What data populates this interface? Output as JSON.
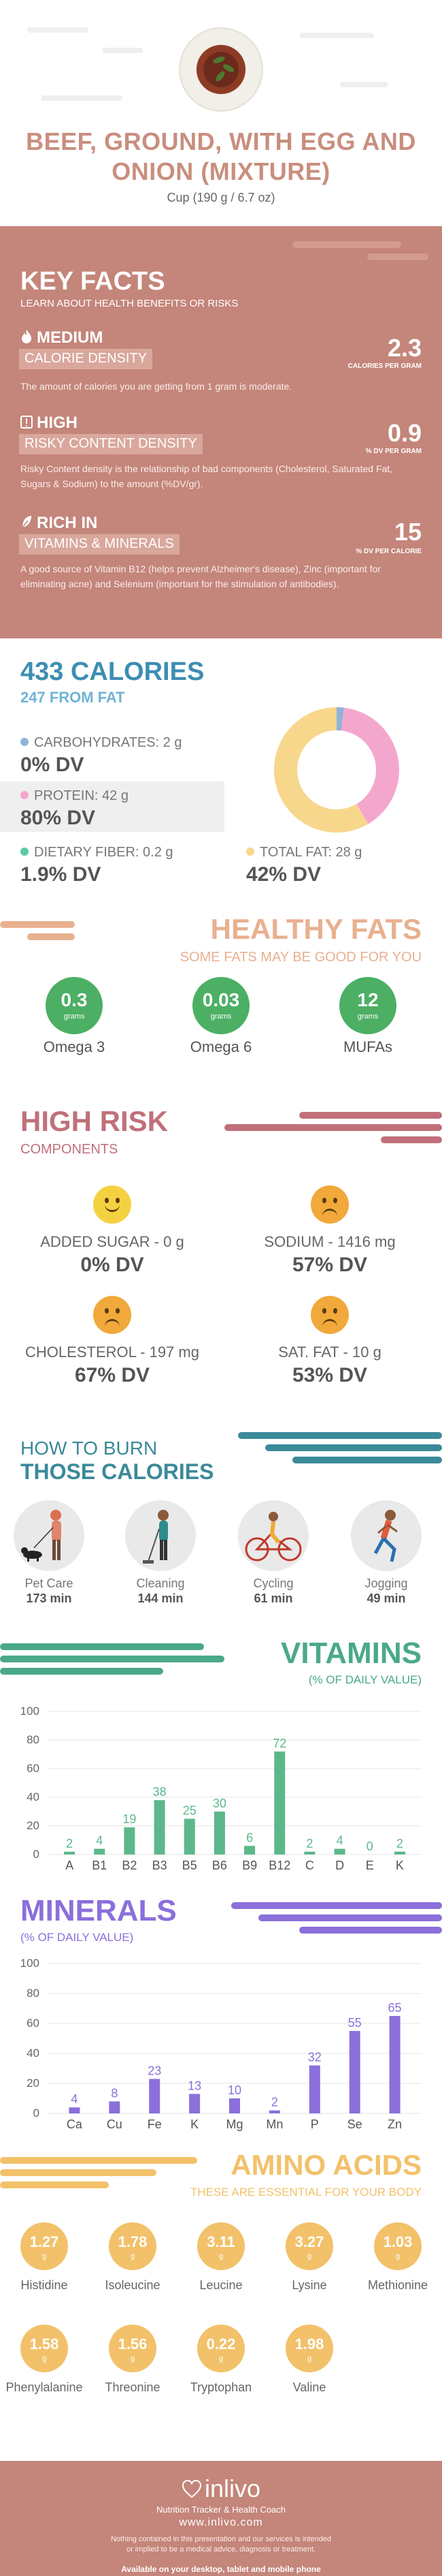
{
  "header": {
    "title": "BEEF, GROUND, WITH EGG AND ONION (MIXTURE)",
    "serving": "Cup (190 g / 6.7 oz)"
  },
  "key_facts": {
    "title": "KEY FACTS",
    "subtitle": "LEARN ABOUT HEALTH BENEFITS OR RISKS",
    "items": [
      {
        "level": "MEDIUM",
        "label": "CALORIE DENSITY",
        "value": "2.3",
        "unit": "CALORIES PER GRAM",
        "icon": "flame-icon",
        "description": "The amount of calories you are getting from 1 gram is moderate."
      },
      {
        "level": "HIGH",
        "label": "RISKY CONTENT DENSITY",
        "value": "0.9",
        "unit": "% DV PER GRAM",
        "icon": "warning-icon",
        "description": "Risky Content density is the relationship of bad components (Cholesterol, Saturated Fat, Sugars & Sodium) to the amount (%DV/gr)."
      },
      {
        "level": "RICH  IN",
        "label": "VITAMINS & MINERALS",
        "value": "15",
        "unit": "% DV PER CALORIE",
        "icon": "leaf-icon",
        "description": "A good source of Vitamin B12 (helps prevent Alzheimer's disease), Zinc (important for eliminating acne) and Selenium (important for the stimulation of antibodies)."
      }
    ]
  },
  "calories": {
    "title": "433 CALORIES",
    "from_fat": "247 FROM FAT",
    "carbs": {
      "label": "CARBOHYDRATES: 2 g",
      "dv": "0% DV",
      "color": "#8fb4d9"
    },
    "protein": {
      "label": "PROTEIN: 42 g",
      "dv": "80% DV",
      "color": "#f4a7cd"
    },
    "fiber": {
      "label": "DIETARY FIBER: 0.2 g",
      "dv": "1.9% DV",
      "color": "#5cc9a7"
    },
    "fat": {
      "label": "TOTAL FAT: 28 g",
      "dv": "42% DV",
      "color": "#f7d78c"
    },
    "donut": {
      "protein_kcal": 168,
      "fat_kcal": 247,
      "carb_kcal": 8
    }
  },
  "healthy_fats": {
    "title": "HEALTHY FATS",
    "subtitle": "SOME FATS MAY BE GOOD FOR YOU",
    "items": [
      {
        "value": "0.3",
        "unit": "grams",
        "name": "Omega 3"
      },
      {
        "value": "0.03",
        "unit": "grams",
        "name": "Omega 6"
      },
      {
        "value": "12",
        "unit": "grams",
        "name": "MUFAs"
      }
    ]
  },
  "high_risk": {
    "title": "HIGH RISK",
    "subtitle": "COMPONENTS",
    "items": [
      {
        "label": "ADDED SUGAR - 0 g",
        "dv": "0% DV",
        "mood": "happy"
      },
      {
        "label": "SODIUM - 1416 mg",
        "dv": "57% DV",
        "mood": "sad"
      },
      {
        "label": "CHOLESTEROL - 197 mg",
        "dv": "67% DV",
        "mood": "sad"
      },
      {
        "label": "SAT. FAT - 10 g",
        "dv": "53% DV",
        "mood": "sad"
      }
    ]
  },
  "burn": {
    "title_line1": "HOW TO BURN",
    "title_line2": "THOSE CALORIES",
    "activities": [
      {
        "name": "Pet Care",
        "minutes": "173 min",
        "icon": "dog-walking-icon"
      },
      {
        "name": "Cleaning",
        "minutes": "144 min",
        "icon": "vacuum-cleaning-icon"
      },
      {
        "name": "Cycling",
        "minutes": "61 min",
        "icon": "cycling-icon"
      },
      {
        "name": "Jogging",
        "minutes": "49 min",
        "icon": "jogging-icon"
      }
    ]
  },
  "vitamins": {
    "title": "VITAMINS",
    "subtitle": "(% OF DAILY VALUE)",
    "chart_data": {
      "type": "bar",
      "categories": [
        "A",
        "B1",
        "B2",
        "B3",
        "B5",
        "B6",
        "B9",
        "B12",
        "C",
        "D",
        "E",
        "K"
      ],
      "values": [
        2,
        4,
        19,
        38,
        25,
        30,
        6,
        72,
        2,
        4,
        0,
        2
      ],
      "ylim": [
        0,
        100
      ],
      "yticks": [
        0,
        20,
        40,
        60,
        80,
        100
      ],
      "color": "#5cb88a"
    }
  },
  "minerals": {
    "title": "MINERALS",
    "subtitle": "(% OF DAILY VALUE)",
    "chart_data": {
      "type": "bar",
      "categories": [
        "Ca",
        "Cu",
        "Fe",
        "K",
        "Mg",
        "Mn",
        "P",
        "Se",
        "Zn"
      ],
      "values": [
        4,
        8,
        23,
        13,
        10,
        2,
        32,
        55,
        65
      ],
      "ylim": [
        0,
        100
      ],
      "yticks": [
        0,
        20,
        40,
        60,
        80,
        100
      ],
      "color": "#8b6fdb"
    }
  },
  "amino_acids": {
    "title": "AMINO ACIDS",
    "subtitle": "THESE ARE ESSENTIAL FOR YOUR BODY",
    "unit": "g",
    "items": [
      {
        "value": "1.27",
        "name": "Histidine"
      },
      {
        "value": "1.78",
        "name": "Isoleucine"
      },
      {
        "value": "3.11",
        "name": "Leucine"
      },
      {
        "value": "3.27",
        "name": "Lysine"
      },
      {
        "value": "1.03",
        "name": "Methionine"
      },
      {
        "value": "1.58",
        "name": "Phenylalanine"
      },
      {
        "value": "1.56",
        "name": "Threonine"
      },
      {
        "value": "0.22",
        "name": "Tryptophan"
      },
      {
        "value": "1.98",
        "name": "Valine"
      }
    ]
  },
  "footer": {
    "brand": "inlivo",
    "tagline": "Nutrition Tracker & Health Coach",
    "site": "www.inlivo.com",
    "disclaimer": "Nothing contained in this presentation and our services is intended or implied to be a medical advice, diagnosis or treatment.",
    "available": "Available on your desktop, tablet and mobile phone"
  }
}
